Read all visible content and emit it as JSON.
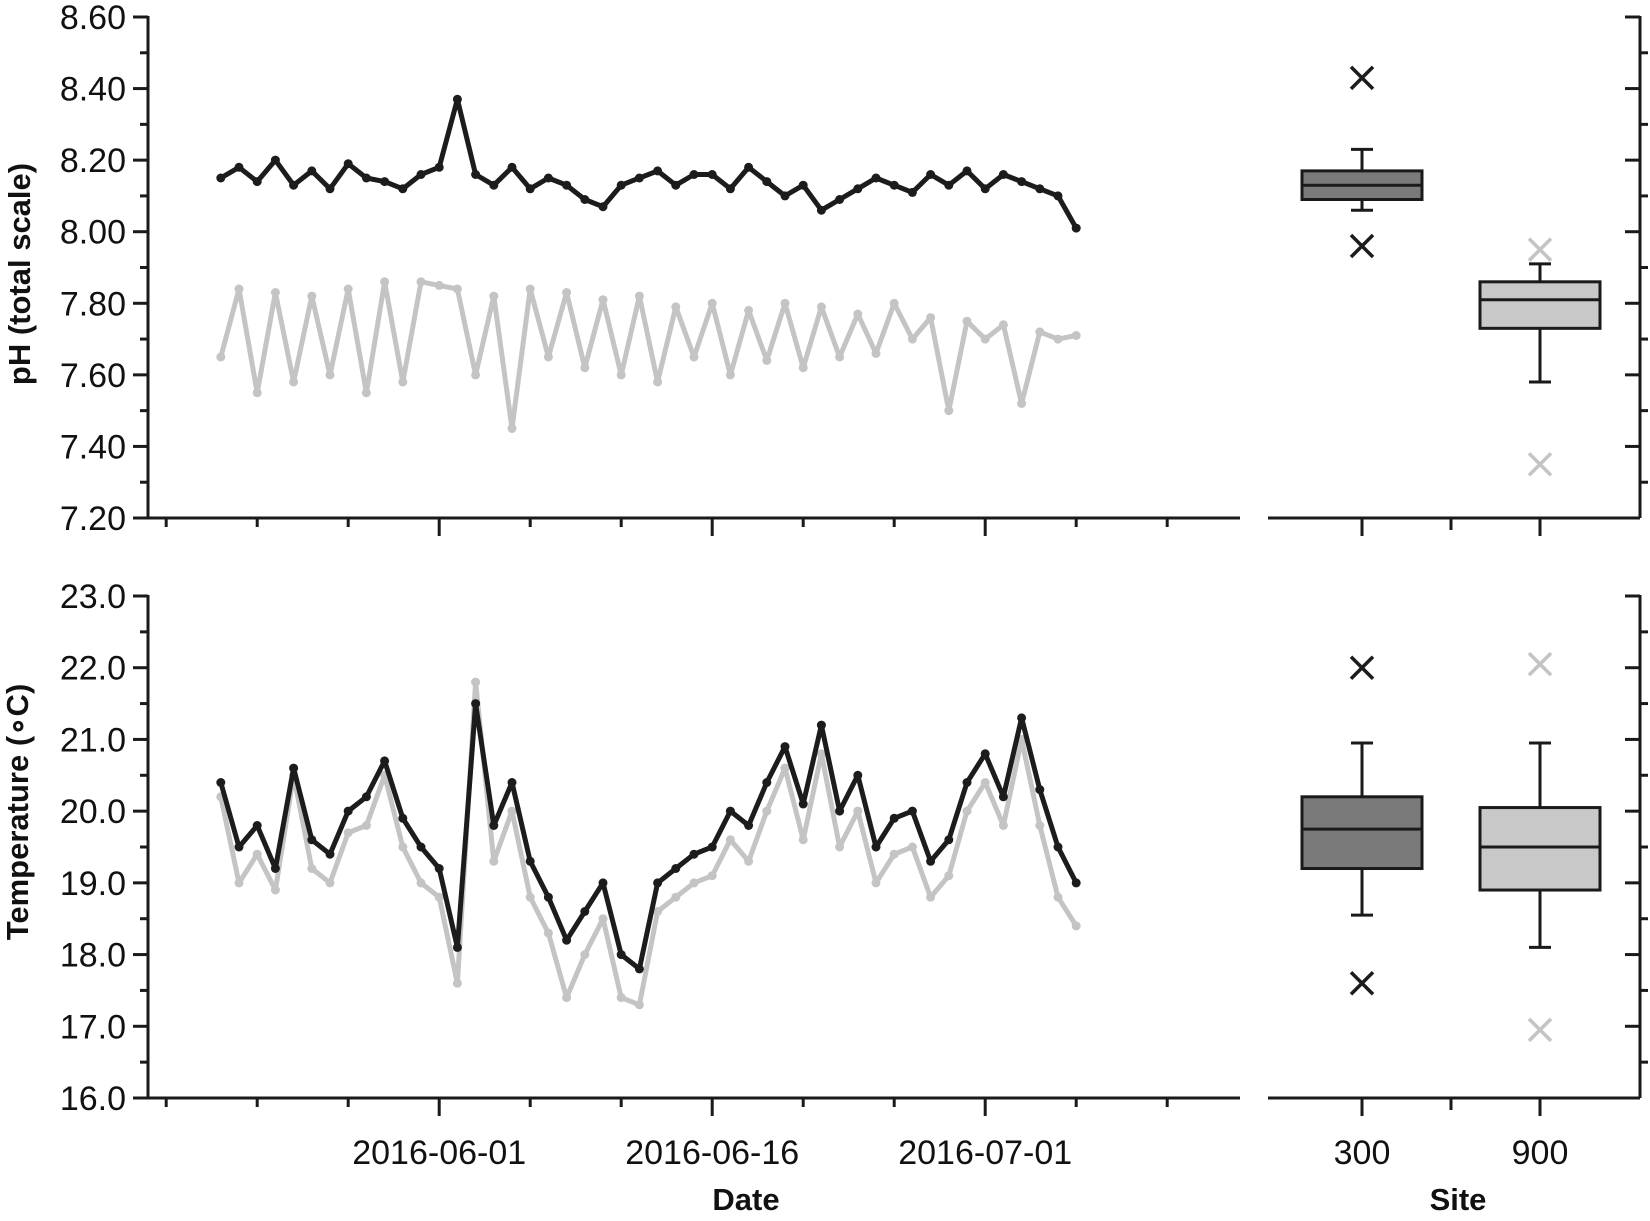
{
  "colors": {
    "site300": "#1c1c1c",
    "site900": "#c4c4c4",
    "box300": "#7a7a7a",
    "box900": "#c8c8c8",
    "axis": "#1a1a1a"
  },
  "chart_data": [
    {
      "id": "ph_ts",
      "type": "line",
      "ylabel": "pH (total scale)",
      "xlabel": "",
      "x_range": [
        "2016-05-16",
        "2016-07-15"
      ],
      "ylim": [
        7.2,
        8.6
      ],
      "y_ticks": [
        "7.20",
        "7.40",
        "7.60",
        "7.80",
        "8.00",
        "8.20",
        "8.40",
        "8.60"
      ],
      "x_ticks": [
        "2016-06-01",
        "2016-06-16",
        "2016-07-01"
      ],
      "grid": false,
      "series": [
        {
          "site": "300",
          "color": "#1c1c1c",
          "x": [
            "2016-05-20",
            "2016-05-21",
            "2016-05-22",
            "2016-05-23",
            "2016-05-24",
            "2016-05-25",
            "2016-05-26",
            "2016-05-27",
            "2016-05-28",
            "2016-05-29",
            "2016-05-30",
            "2016-05-31",
            "2016-06-01",
            "2016-06-02",
            "2016-06-03",
            "2016-06-04",
            "2016-06-05",
            "2016-06-06",
            "2016-06-07",
            "2016-06-08",
            "2016-06-09",
            "2016-06-10",
            "2016-06-11",
            "2016-06-12",
            "2016-06-13",
            "2016-06-14",
            "2016-06-15",
            "2016-06-16",
            "2016-06-17",
            "2016-06-18",
            "2016-06-19",
            "2016-06-20",
            "2016-06-21",
            "2016-06-22",
            "2016-06-23",
            "2016-06-24",
            "2016-06-25",
            "2016-06-26",
            "2016-06-27",
            "2016-06-28",
            "2016-06-29",
            "2016-06-30",
            "2016-07-01",
            "2016-07-02",
            "2016-07-03",
            "2016-07-04",
            "2016-07-05",
            "2016-07-06"
          ],
          "y": [
            8.15,
            8.18,
            8.14,
            8.2,
            8.13,
            8.17,
            8.12,
            8.19,
            8.15,
            8.14,
            8.12,
            8.16,
            8.18,
            8.37,
            8.16,
            8.13,
            8.18,
            8.12,
            8.15,
            8.13,
            8.09,
            8.07,
            8.13,
            8.15,
            8.17,
            8.13,
            8.16,
            8.16,
            8.12,
            8.18,
            8.14,
            8.1,
            8.13,
            8.06,
            8.09,
            8.12,
            8.15,
            8.13,
            8.11,
            8.16,
            8.13,
            8.17,
            8.12,
            8.16,
            8.14,
            8.12,
            8.1,
            8.01
          ]
        },
        {
          "site": "900",
          "color": "#c4c4c4",
          "x": [
            "2016-05-20",
            "2016-05-21",
            "2016-05-22",
            "2016-05-23",
            "2016-05-24",
            "2016-05-25",
            "2016-05-26",
            "2016-05-27",
            "2016-05-28",
            "2016-05-29",
            "2016-05-30",
            "2016-05-31",
            "2016-06-01",
            "2016-06-02",
            "2016-06-03",
            "2016-06-04",
            "2016-06-05",
            "2016-06-06",
            "2016-06-07",
            "2016-06-08",
            "2016-06-09",
            "2016-06-10",
            "2016-06-11",
            "2016-06-12",
            "2016-06-13",
            "2016-06-14",
            "2016-06-15",
            "2016-06-16",
            "2016-06-17",
            "2016-06-18",
            "2016-06-19",
            "2016-06-20",
            "2016-06-21",
            "2016-06-22",
            "2016-06-23",
            "2016-06-24",
            "2016-06-25",
            "2016-06-26",
            "2016-06-27",
            "2016-06-28",
            "2016-06-29",
            "2016-06-30",
            "2016-07-01",
            "2016-07-02",
            "2016-07-03",
            "2016-07-04",
            "2016-07-05",
            "2016-07-06"
          ],
          "y": [
            7.65,
            7.84,
            7.55,
            7.83,
            7.58,
            7.82,
            7.6,
            7.84,
            7.55,
            7.86,
            7.58,
            7.86,
            7.85,
            7.84,
            7.6,
            7.82,
            7.45,
            7.84,
            7.65,
            7.83,
            7.62,
            7.81,
            7.6,
            7.82,
            7.58,
            7.79,
            7.65,
            7.8,
            7.6,
            7.78,
            7.64,
            7.8,
            7.62,
            7.79,
            7.65,
            7.77,
            7.66,
            7.8,
            7.7,
            7.76,
            7.5,
            7.75,
            7.7,
            7.74,
            7.52,
            7.72,
            7.7,
            7.71
          ]
        }
      ]
    },
    {
      "id": "ph_box",
      "type": "box",
      "ylim": [
        7.2,
        8.6
      ],
      "categories": [
        "300",
        "900"
      ],
      "boxes": [
        {
          "site": "300",
          "q1": 8.09,
          "median": 8.13,
          "q3": 8.17,
          "whisker_low": 8.06,
          "whisker_high": 8.23,
          "outliers": [
            8.43,
            7.96
          ]
        },
        {
          "site": "900",
          "q1": 7.73,
          "median": 7.81,
          "q3": 7.86,
          "whisker_low": 7.58,
          "whisker_high": 7.91,
          "outliers": [
            7.95,
            7.35
          ]
        }
      ]
    },
    {
      "id": "temp_ts",
      "type": "line",
      "ylabel": "Temperature (∘C)",
      "xlabel": "Date",
      "x_range": [
        "2016-05-16",
        "2016-07-15"
      ],
      "ylim": [
        16.0,
        23.0
      ],
      "y_ticks": [
        "16.0",
        "17.0",
        "18.0",
        "19.0",
        "20.0",
        "21.0",
        "22.0",
        "23.0"
      ],
      "x_ticks": [
        "2016-06-01",
        "2016-06-16",
        "2016-07-01"
      ],
      "grid": false,
      "series": [
        {
          "site": "300",
          "color": "#1c1c1c",
          "x": [
            "2016-05-20",
            "2016-05-21",
            "2016-05-22",
            "2016-05-23",
            "2016-05-24",
            "2016-05-25",
            "2016-05-26",
            "2016-05-27",
            "2016-05-28",
            "2016-05-29",
            "2016-05-30",
            "2016-05-31",
            "2016-06-01",
            "2016-06-02",
            "2016-06-03",
            "2016-06-04",
            "2016-06-05",
            "2016-06-06",
            "2016-06-07",
            "2016-06-08",
            "2016-06-09",
            "2016-06-10",
            "2016-06-11",
            "2016-06-12",
            "2016-06-13",
            "2016-06-14",
            "2016-06-15",
            "2016-06-16",
            "2016-06-17",
            "2016-06-18",
            "2016-06-19",
            "2016-06-20",
            "2016-06-21",
            "2016-06-22",
            "2016-06-23",
            "2016-06-24",
            "2016-06-25",
            "2016-06-26",
            "2016-06-27",
            "2016-06-28",
            "2016-06-29",
            "2016-06-30",
            "2016-07-01",
            "2016-07-02",
            "2016-07-03",
            "2016-07-04",
            "2016-07-05",
            "2016-07-06"
          ],
          "y": [
            20.4,
            19.5,
            19.8,
            19.2,
            20.6,
            19.6,
            19.4,
            20.0,
            20.2,
            20.7,
            19.9,
            19.5,
            19.2,
            18.1,
            21.5,
            19.8,
            20.4,
            19.3,
            18.8,
            18.2,
            18.6,
            19.0,
            18.0,
            17.8,
            19.0,
            19.2,
            19.4,
            19.5,
            20.0,
            19.8,
            20.4,
            20.9,
            20.1,
            21.2,
            20.0,
            20.5,
            19.5,
            19.9,
            20.0,
            19.3,
            19.6,
            20.4,
            20.8,
            20.2,
            21.3,
            20.3,
            19.5,
            19.0
          ]
        },
        {
          "site": "900",
          "color": "#c4c4c4",
          "x": [
            "2016-05-20",
            "2016-05-21",
            "2016-05-22",
            "2016-05-23",
            "2016-05-24",
            "2016-05-25",
            "2016-05-26",
            "2016-05-27",
            "2016-05-28",
            "2016-05-29",
            "2016-05-30",
            "2016-05-31",
            "2016-06-01",
            "2016-06-02",
            "2016-06-03",
            "2016-06-04",
            "2016-06-05",
            "2016-06-06",
            "2016-06-07",
            "2016-06-08",
            "2016-06-09",
            "2016-06-10",
            "2016-06-11",
            "2016-06-12",
            "2016-06-13",
            "2016-06-14",
            "2016-06-15",
            "2016-06-16",
            "2016-06-17",
            "2016-06-18",
            "2016-06-19",
            "2016-06-20",
            "2016-06-21",
            "2016-06-22",
            "2016-06-23",
            "2016-06-24",
            "2016-06-25",
            "2016-06-26",
            "2016-06-27",
            "2016-06-28",
            "2016-06-29",
            "2016-06-30",
            "2016-07-01",
            "2016-07-02",
            "2016-07-03",
            "2016-07-04",
            "2016-07-05",
            "2016-07-06"
          ],
          "y": [
            20.2,
            19.0,
            19.4,
            18.9,
            20.5,
            19.2,
            19.0,
            19.7,
            19.8,
            20.5,
            19.5,
            19.0,
            18.8,
            17.6,
            21.8,
            19.3,
            20.0,
            18.8,
            18.3,
            17.4,
            18.0,
            18.5,
            17.4,
            17.3,
            18.6,
            18.8,
            19.0,
            19.1,
            19.6,
            19.3,
            20.0,
            20.6,
            19.6,
            20.8,
            19.5,
            20.0,
            19.0,
            19.4,
            19.5,
            18.8,
            19.1,
            20.0,
            20.4,
            19.8,
            21.0,
            19.8,
            18.8,
            18.4
          ]
        }
      ]
    },
    {
      "id": "temp_box",
      "type": "box",
      "xlabel": "Site",
      "ylim": [
        16.0,
        23.0
      ],
      "categories": [
        "300",
        "900"
      ],
      "boxes": [
        {
          "site": "300",
          "q1": 19.2,
          "median": 19.75,
          "q3": 20.2,
          "whisker_low": 18.55,
          "whisker_high": 20.95,
          "outliers": [
            22.0,
            17.6
          ]
        },
        {
          "site": "900",
          "q1": 18.9,
          "median": 19.5,
          "q3": 20.05,
          "whisker_low": 18.1,
          "whisker_high": 20.95,
          "outliers": [
            22.05,
            16.95
          ]
        }
      ]
    }
  ]
}
